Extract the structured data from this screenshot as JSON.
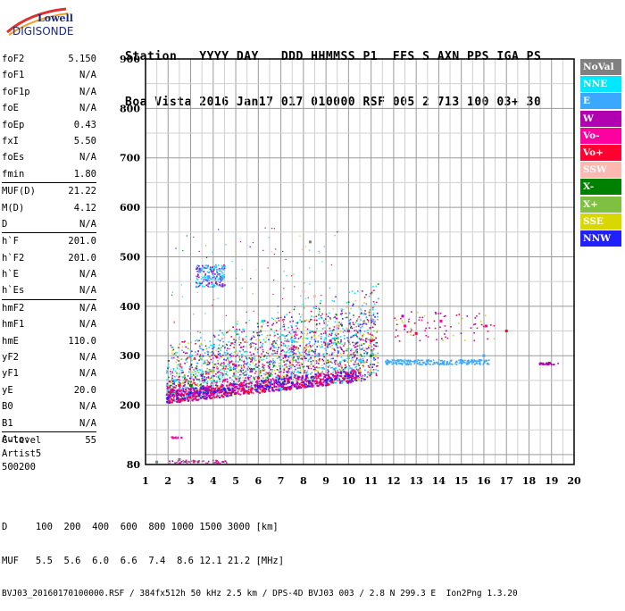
{
  "logo": {
    "line1": "Lowell",
    "line2": "DIGISONDE"
  },
  "header": {
    "line1": "Station   YYYY DAY   DDD HHMMSS P1  FFS S AXN PPS IGA PS",
    "line2": "Boa Vista 2016 Jan17 017 010000 RSF 005 2 713 100 03+ 30"
  },
  "params": [
    {
      "group": [
        {
          "label": "foF2",
          "value": "5.150"
        },
        {
          "label": "foF1",
          "value": "N/A"
        },
        {
          "label": "foF1p",
          "value": "N/A"
        },
        {
          "label": "foE",
          "value": "N/A"
        },
        {
          "label": "foEp",
          "value": "0.43"
        },
        {
          "label": "fxI",
          "value": "5.50"
        },
        {
          "label": "foEs",
          "value": "N/A"
        },
        {
          "label": "fmin",
          "value": "1.80"
        }
      ]
    },
    {
      "group": [
        {
          "label": "MUF(D)",
          "value": "21.22"
        },
        {
          "label": "M(D)",
          "value": "4.12"
        },
        {
          "label": "D",
          "value": "N/A"
        }
      ]
    },
    {
      "group": [
        {
          "label": "h`F",
          "value": "201.0"
        },
        {
          "label": "h`F2",
          "value": "201.0"
        },
        {
          "label": "h`E",
          "value": "N/A"
        },
        {
          "label": "h`Es",
          "value": "N/A"
        }
      ]
    },
    {
      "group": [
        {
          "label": "hmF2",
          "value": "N/A"
        },
        {
          "label": "hmF1",
          "value": "N/A"
        },
        {
          "label": "hmE",
          "value": "110.0"
        },
        {
          "label": "yF2",
          "value": "N/A"
        },
        {
          "label": "yF1",
          "value": "N/A"
        },
        {
          "label": "yE",
          "value": "20.0"
        },
        {
          "label": "B0",
          "value": "N/A"
        },
        {
          "label": "B1",
          "value": "N/A"
        }
      ]
    },
    {
      "group": [
        {
          "label": "C-level",
          "value": "55"
        }
      ]
    }
  ],
  "auto": {
    "line1": "Auto:",
    "line2": "Artist5",
    "line3": "500200"
  },
  "bottom": {
    "line1": "D     100  200  400  600  800 1000 1500 3000 [km]",
    "line2": "MUF   5.5  5.6  6.0  6.6  7.4  8.6 12.1 21.2 [MHz]",
    "line3": "BVJ03_20160170100000.RSF / 384fx512h 50 kHz 2.5 km / DPS-4D BVJ03 003 / 2.8 N 299.3 E  Ion2Png 1.3.20"
  },
  "legend": [
    {
      "label": "NoVal",
      "color": "#808080"
    },
    {
      "label": "NNE",
      "color": "#00e8ff"
    },
    {
      "label": "E",
      "color": "#3aa8ff"
    },
    {
      "label": "W",
      "color": "#b000b0"
    },
    {
      "label": "Vo-",
      "color": "#ff00a0"
    },
    {
      "label": "Vo+",
      "color": "#ff0030"
    },
    {
      "label": "SSW",
      "color": "#ffb8b0"
    },
    {
      "label": "X-",
      "color": "#008000"
    },
    {
      "label": "X+",
      "color": "#80c040"
    },
    {
      "label": "SSE",
      "color": "#d8d800"
    },
    {
      "label": "NNW",
      "color": "#2020ff"
    }
  ],
  "chart_data": {
    "type": "scatter",
    "xlim": [
      1,
      20
    ],
    "ylim": [
      80,
      900
    ],
    "x_ticks": [
      1,
      2,
      3,
      4,
      5,
      6,
      7,
      8,
      9,
      10,
      11,
      12,
      13,
      14,
      15,
      16,
      17,
      18,
      19,
      20
    ],
    "y_ticks": [
      80,
      200,
      300,
      400,
      500,
      600,
      700,
      800,
      900
    ],
    "grid": true,
    "series": [
      {
        "name": "NNE",
        "points": [
          [
            2.3,
            250
          ],
          [
            3.0,
            300
          ],
          [
            4.0,
            320
          ],
          [
            5.0,
            350
          ],
          [
            6.2,
            370
          ],
          [
            7.5,
            330
          ],
          [
            8.6,
            300
          ],
          [
            10.5,
            290
          ],
          [
            11.2,
            300
          ]
        ]
      },
      {
        "name": "E",
        "points": [
          [
            3.4,
            470
          ],
          [
            3.8,
            460
          ],
          [
            4.4,
            455
          ],
          [
            12.2,
            290
          ],
          [
            14.2,
            285
          ],
          [
            15.0,
            290
          ],
          [
            16.0,
            300
          ]
        ]
      },
      {
        "name": "W",
        "points": [
          [
            2.2,
            230
          ],
          [
            3.5,
            260
          ],
          [
            5.0,
            280
          ],
          [
            7.2,
            300
          ],
          [
            9.2,
            330
          ],
          [
            12.4,
            380
          ],
          [
            18.9,
            285
          ]
        ]
      },
      {
        "name": "Vo-",
        "points": [
          [
            2.0,
            235
          ],
          [
            4.5,
            250
          ],
          [
            10.0,
            350
          ],
          [
            12.5,
            360
          ],
          [
            14.1,
            370
          ],
          [
            16.1,
            360
          ]
        ]
      },
      {
        "name": "Vo+",
        "points": [
          [
            2.5,
            240
          ],
          [
            6.0,
            255
          ],
          [
            11.0,
            330
          ],
          [
            13.0,
            345
          ],
          [
            17.0,
            350
          ]
        ]
      },
      {
        "name": "SSW",
        "points": [
          [
            8.0,
            430
          ],
          [
            8.5,
            420
          ],
          [
            9.5,
            360
          ]
        ]
      },
      {
        "name": "X-",
        "points": [
          [
            3.0,
            240
          ],
          [
            6.5,
            260
          ],
          [
            11.0,
            300
          ]
        ]
      },
      {
        "name": "X+",
        "points": [
          [
            4.0,
            270
          ],
          [
            10.0,
            300
          ]
        ]
      },
      {
        "name": "SSE",
        "points": [
          [
            10.5,
            270
          ],
          [
            11.2,
            300
          ]
        ]
      },
      {
        "name": "NNW",
        "points": [
          [
            2.0,
            215
          ],
          [
            3.0,
            225
          ],
          [
            4.5,
            232
          ],
          [
            6.0,
            238
          ],
          [
            7.5,
            245
          ],
          [
            9.0,
            250
          ],
          [
            10.0,
            260
          ]
        ]
      },
      {
        "name": "NoVal",
        "points": [
          [
            1.5,
            85
          ],
          [
            2.5,
            90
          ],
          [
            8.3,
            530
          ]
        ]
      }
    ]
  }
}
